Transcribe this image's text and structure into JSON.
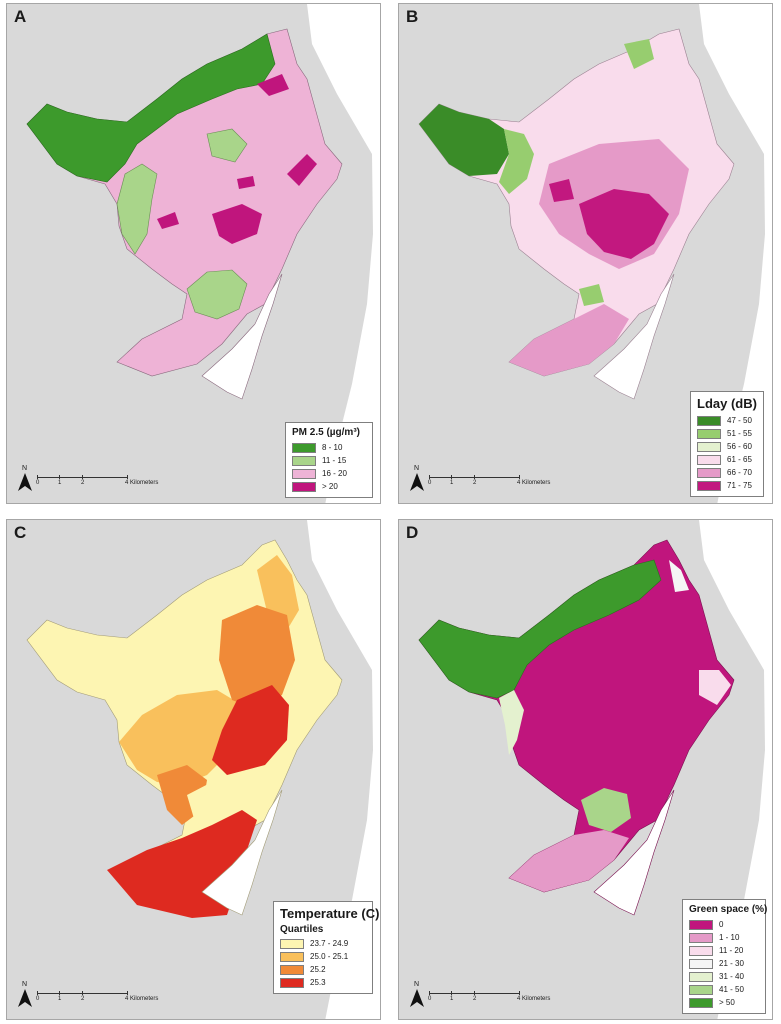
{
  "panels": [
    {
      "id": "A",
      "legend": {
        "title": "PM 2.5 (µg/m³)",
        "subtitle": "",
        "items": [
          {
            "label": "8 - 10",
            "color": "#3d9a2c"
          },
          {
            "label": "11 - 15",
            "color": "#a9d58a"
          },
          {
            "label": "16 - 20",
            "color": "#eeb3d6"
          },
          {
            "label": "> 20",
            "color": "#c0157d"
          }
        ]
      }
    },
    {
      "id": "B",
      "legend": {
        "title": "Lday (dB)",
        "subtitle": "",
        "items": [
          {
            "label": "47 - 50",
            "color": "#3a8c28"
          },
          {
            "label": "51 - 55",
            "color": "#97cd6f"
          },
          {
            "label": "56 - 60",
            "color": "#e4f1cf"
          },
          {
            "label": "61 - 65",
            "color": "#f9dcec"
          },
          {
            "label": "66 - 70",
            "color": "#e59ac8"
          },
          {
            "label": "71 - 75",
            "color": "#c2187f"
          }
        ]
      }
    },
    {
      "id": "C",
      "legend": {
        "title": "Temperature (C)",
        "subtitle": "Quartiles",
        "items": [
          {
            "label": "23.7 - 24.9",
            "color": "#fdf5b2"
          },
          {
            "label": "25.0 - 25.1",
            "color": "#f9c05c"
          },
          {
            "label": "25.2",
            "color": "#f08a38"
          },
          {
            "label": "25.3",
            "color": "#de2a20"
          }
        ]
      }
    },
    {
      "id": "D",
      "legend": {
        "title": "Green space (%)",
        "subtitle": "",
        "items": [
          {
            "label": "0",
            "color": "#c0157d"
          },
          {
            "label": "1 - 10",
            "color": "#e59ac8"
          },
          {
            "label": "11 - 20",
            "color": "#f9dcec"
          },
          {
            "label": "21 - 30",
            "color": "#f5f5f5"
          },
          {
            "label": "31 - 40",
            "color": "#e4f1cf"
          },
          {
            "label": "41 - 50",
            "color": "#a9d58a"
          },
          {
            "label": "> 50",
            "color": "#3d9a2c"
          }
        ]
      }
    }
  ],
  "north_label": "N",
  "scale": {
    "ticks": [
      "0",
      "1",
      "2"
    ],
    "end_label": "4 Kilometers"
  },
  "colors": {
    "sea": "#d9d9d9",
    "boundary": "#6e6e6e",
    "land_white": "#ffffff"
  }
}
